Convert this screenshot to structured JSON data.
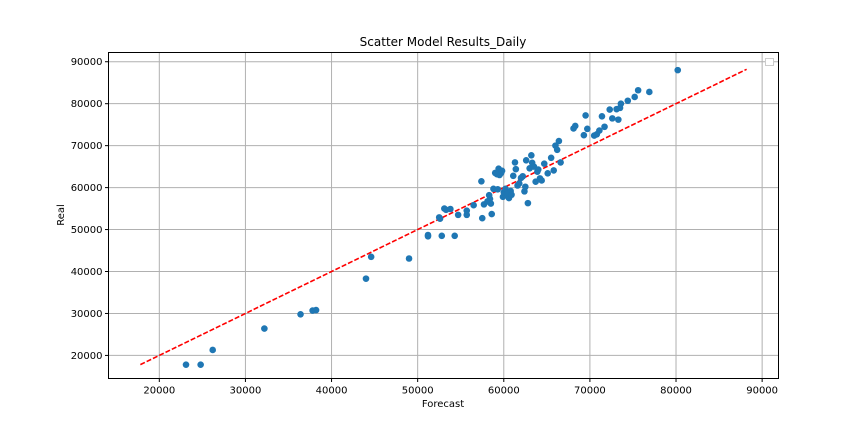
{
  "chart_data": {
    "type": "scatter",
    "title": "Scatter Model Results_Daily",
    "xlabel": "Forecast",
    "ylabel": "Real",
    "xlim": [
      14100,
      91900
    ],
    "ylim": [
      14500,
      92200
    ],
    "xticks": [
      20000,
      30000,
      40000,
      50000,
      60000,
      70000,
      80000,
      90000
    ],
    "yticks": [
      20000,
      30000,
      40000,
      50000,
      60000,
      70000,
      80000,
      90000
    ],
    "grid": true,
    "legend": "top-right, empty",
    "colors": {
      "points": "#1f77b4",
      "line": "#ff0000",
      "grid": "#b0b0b0"
    },
    "series": [
      {
        "type": "scatter",
        "x": [
          23100,
          24800,
          26200,
          32200,
          36400,
          37800,
          38200,
          44000,
          44600,
          49000,
          51200,
          51200,
          52500,
          52600,
          52800,
          53100,
          53300,
          53800,
          54300,
          54700,
          55700,
          55700,
          56500,
          57400,
          57500,
          57700,
          58100,
          58300,
          58400,
          58500,
          58600,
          58800,
          59000,
          59200,
          59300,
          59400,
          59500,
          59700,
          59800,
          59900,
          60000,
          60200,
          60400,
          60600,
          60800,
          60900,
          61100,
          61300,
          61400,
          61600,
          61800,
          62000,
          62200,
          62400,
          62500,
          62600,
          62800,
          63000,
          63200,
          63300,
          63500,
          63700,
          63900,
          64000,
          64200,
          64400,
          64700,
          65100,
          65500,
          65800,
          66000,
          66200,
          66400,
          66600,
          68100,
          68300,
          69300,
          69500,
          69700,
          70500,
          70800,
          71100,
          71400,
          71700,
          72300,
          72600,
          73100,
          73300,
          73500,
          73600,
          74400,
          75200,
          75600,
          76900,
          80200
        ],
        "y": [
          17800,
          17800,
          21300,
          26400,
          29800,
          30700,
          30800,
          38300,
          43500,
          43100,
          48700,
          48400,
          52900,
          52600,
          48500,
          55000,
          54700,
          54900,
          48500,
          53500,
          53500,
          54500,
          55800,
          61500,
          52700,
          56000,
          56700,
          58200,
          57300,
          56200,
          53700,
          59700,
          63500,
          63200,
          59600,
          64500,
          63000,
          63500,
          64000,
          57800,
          58900,
          59700,
          58500,
          57500,
          59200,
          58300,
          62800,
          66000,
          64400,
          60500,
          61000,
          62300,
          62700,
          59100,
          60200,
          66500,
          56300,
          64600,
          67700,
          65900,
          65000,
          61400,
          63800,
          64300,
          62200,
          61700,
          65700,
          63400,
          67100,
          64100,
          70000,
          69000,
          71100,
          66000,
          74100,
          74700,
          72500,
          77200,
          74000,
          72400,
          72700,
          73600,
          77000,
          74500,
          78600,
          76500,
          78700,
          76200,
          79000,
          80000,
          80700,
          81600,
          83200,
          82800,
          88000
        ]
      },
      {
        "type": "line",
        "style": "dashed",
        "x": [
          17800,
          88200
        ],
        "y": [
          17800,
          88200
        ]
      }
    ]
  }
}
